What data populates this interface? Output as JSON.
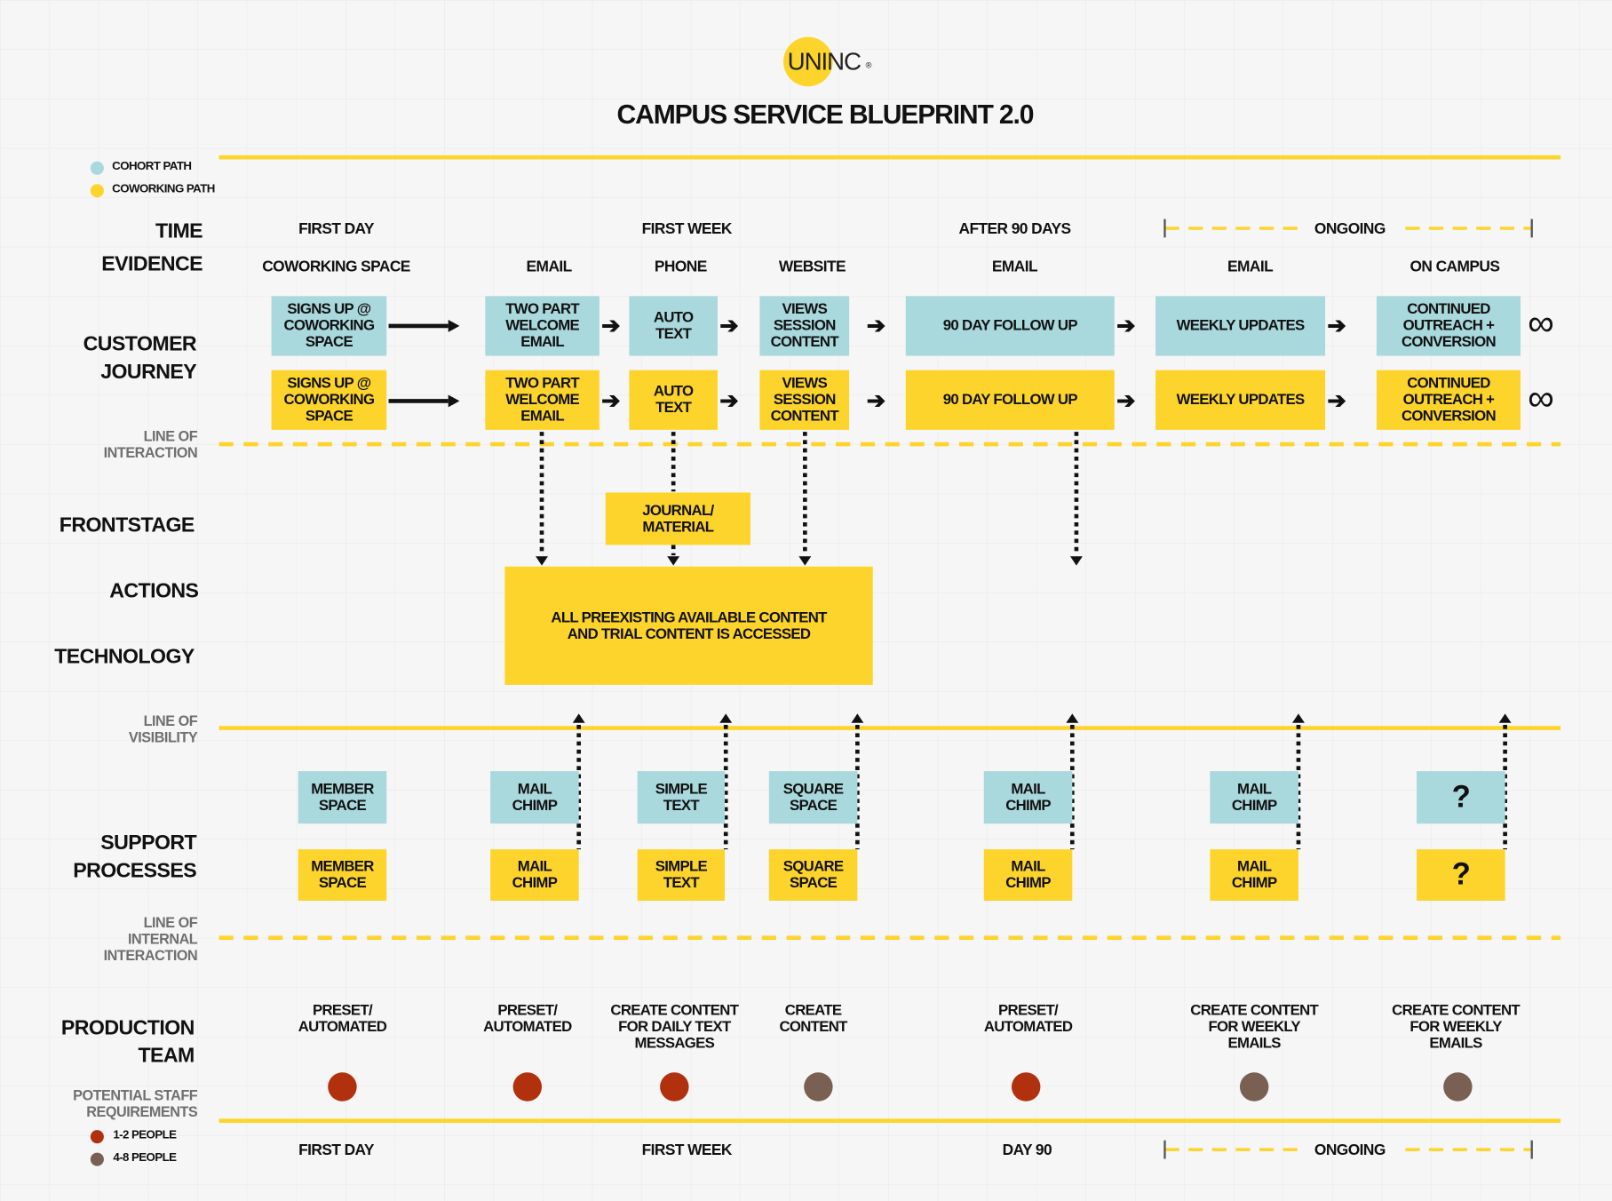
{
  "title": "CAMPUS SERVICE BLUEPRINT 2.0",
  "logo_text": "UNINC",
  "colors": {
    "cohort": "#a9d8dd",
    "coworking": "#fdd42b",
    "small_team": "#b1310f",
    "large_team": "#7a5f53"
  },
  "legend": [
    {
      "label": "COHORT PATH",
      "color": "#a9d8dd"
    },
    {
      "label": "COWORKING PATH",
      "color": "#fdd42b"
    }
  ],
  "row_labels": {
    "time": "TIME",
    "evidence": "EVIDENCE",
    "customer_journey": "CUSTOMER\nJOURNEY",
    "frontstage": "FRONTSTAGE",
    "actions": "ACTIONS",
    "technology": "TECHNOLOGY",
    "support": "SUPPORT\nPROCESSES",
    "production": "PRODUCTION\nTEAM",
    "staff": "POTENTIAL STAFF\nREQUIREMENTS"
  },
  "line_labels": {
    "interaction": "LINE OF\nINTERACTION",
    "visibility": "LINE OF\nVISIBILITY",
    "internal": "LINE OF\nINTERNAL\nINTERACTION"
  },
  "time_headers": [
    "FIRST DAY",
    "FIRST WEEK",
    "AFTER 90 DAYS",
    "ONGOING"
  ],
  "evidence_headers": [
    "COWORKING SPACE",
    "EMAIL",
    "PHONE",
    "WEBSITE",
    "EMAIL",
    "EMAIL",
    "ON CAMPUS"
  ],
  "journey_steps": [
    "SIGNS UP @\nCOWORKING\nSPACE",
    "TWO PART\nWELCOME\nEMAIL",
    "AUTO\nTEXT",
    "VIEWS\nSESSION\nCONTENT",
    "90 DAY FOLLOW UP",
    "WEEKLY UPDATES",
    "CONTINUED\nOUTREACH +\nCONVERSION"
  ],
  "frontstage_box": "JOURNAL/\nMATERIAL",
  "actions_box": "ALL  PREEXISTING AVAILABLE CONTENT\nAND TRIAL CONTENT IS ACCESSED",
  "support_items": [
    "MEMBER\nSPACE",
    "MAIL\nCHIMP",
    "SIMPLE\nTEXT",
    "SQUARE\nSPACE",
    "MAIL\nCHIMP",
    "MAIL\nCHIMP",
    "?"
  ],
  "production_items": [
    {
      "label": "PRESET/\nAUTOMATED",
      "size": "1-2 PEOPLE"
    },
    {
      "label": "PRESET/\nAUTOMATED",
      "size": "1-2 PEOPLE"
    },
    {
      "label": "CREATE CONTENT\nFOR DAILY TEXT\nMESSAGES",
      "size": "1-2 PEOPLE"
    },
    {
      "label": "CREATE\nCONTENT",
      "size": "4-8 PEOPLE"
    },
    {
      "label": "PRESET/\nAUTOMATED",
      "size": "1-2 PEOPLE"
    },
    {
      "label": "CREATE CONTENT\nFOR WEEKLY\nEMAILS",
      "size": "4-8 PEOPLE"
    },
    {
      "label": "CREATE CONTENT\nFOR WEEKLY\nEMAILS",
      "size": "4-8 PEOPLE"
    }
  ],
  "staff_legend": [
    {
      "label": "1-2 PEOPLE",
      "color": "#b1310f"
    },
    {
      "label": "4-8 PEOPLE",
      "color": "#7a5f53"
    }
  ],
  "bottom_headers": [
    "FIRST DAY",
    "FIRST WEEK",
    "DAY 90",
    "ONGOING"
  ],
  "arrow_glyph": "➔",
  "infinity_glyph": "∞"
}
